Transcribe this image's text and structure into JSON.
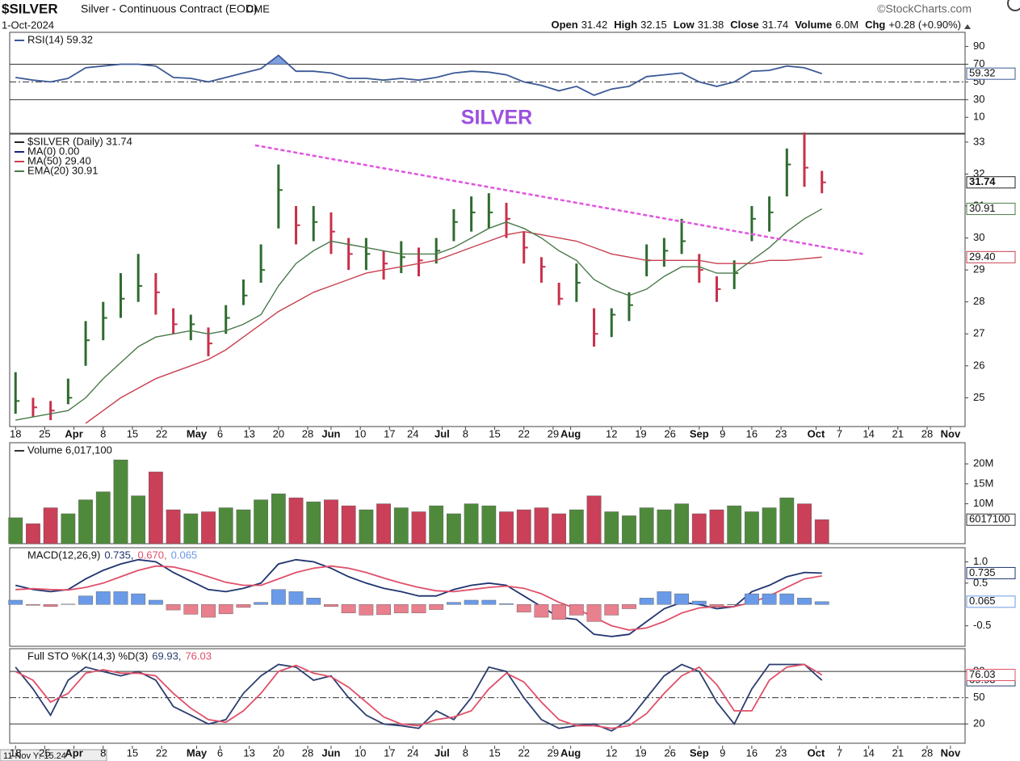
{
  "header": {
    "symbol": "$SILVER",
    "description": "Silver - Continuous Contract (EOD)",
    "exchange": "CME",
    "source": "©StockCharts.com",
    "date": "1-Oct-2024",
    "quote": [
      {
        "label": "Open",
        "value": 31.42
      },
      {
        "label": "High",
        "value": 32.15
      },
      {
        "label": "Low",
        "value": 31.38
      },
      {
        "label": "Close",
        "value": 31.74
      },
      {
        "label": "Volume",
        "value": "6.0M"
      },
      {
        "label": "Chg",
        "value": "+0.28 (+0.90%)"
      }
    ],
    "cursor": "11 Nov Y:-15.24"
  },
  "chart_data": {
    "type": "financial",
    "title": "SILVER",
    "x": [
      0,
      3,
      6,
      9,
      12,
      15,
      18,
      21,
      24,
      27,
      30,
      33,
      36,
      39,
      42,
      45,
      48,
      51,
      54,
      57,
      60,
      63,
      66,
      69,
      72,
      75,
      78,
      81,
      84,
      87,
      90,
      93,
      96,
      99,
      102,
      105,
      108,
      111,
      114,
      117,
      120,
      123,
      126,
      129,
      132,
      135,
      138
    ],
    "xlim": [
      -1,
      162.5
    ],
    "xticks": [
      {
        "value": 0,
        "label": "18"
      },
      {
        "value": 5,
        "label": "25"
      },
      {
        "value": 10,
        "label": "Apr"
      },
      {
        "value": 15,
        "label": "8"
      },
      {
        "value": 20,
        "label": "15"
      },
      {
        "value": 25,
        "label": "22"
      },
      {
        "value": 31,
        "label": "May"
      },
      {
        "value": 35,
        "label": "6"
      },
      {
        "value": 40,
        "label": "13"
      },
      {
        "value": 45,
        "label": "20"
      },
      {
        "value": 50,
        "label": "28"
      },
      {
        "value": 54,
        "label": "Jun"
      },
      {
        "value": 59,
        "label": "10"
      },
      {
        "value": 64,
        "label": "17"
      },
      {
        "value": 68,
        "label": "24"
      },
      {
        "value": 73,
        "label": "Jul"
      },
      {
        "value": 77,
        "label": "8"
      },
      {
        "value": 82,
        "label": "15"
      },
      {
        "value": 87,
        "label": "22"
      },
      {
        "value": 92,
        "label": "29"
      },
      {
        "value": 95,
        "label": "Aug"
      },
      {
        "value": 102,
        "label": "12"
      },
      {
        "value": 107,
        "label": "19"
      },
      {
        "value": 112,
        "label": "26"
      },
      {
        "value": 117,
        "label": "Sep"
      },
      {
        "value": 121,
        "label": "9"
      },
      {
        "value": 126,
        "label": "16"
      },
      {
        "value": 131,
        "label": "23"
      },
      {
        "value": 137,
        "label": "Oct"
      },
      {
        "value": 141,
        "label": "7"
      },
      {
        "value": 146,
        "label": "14"
      },
      {
        "value": 151,
        "label": "21"
      },
      {
        "value": 156,
        "label": "28"
      },
      {
        "value": 160,
        "label": "Nov"
      }
    ],
    "panels": [
      {
        "type": "line",
        "ylim": [
          -8,
          106
        ],
        "yticks": [
          10,
          30,
          50,
          70,
          90
        ],
        "reference_lines": [
          {
            "value": 70,
            "style": "solid"
          },
          {
            "value": 30,
            "style": "solid"
          },
          {
            "value": 50,
            "style": "dashdot"
          }
        ],
        "series": [
          {
            "name": "RSI(14) 59.32",
            "type": "line",
            "color": "#3c5a96",
            "fill_color": "#7f9ee0",
            "tag": "59.32",
            "values": [
              55,
              52,
              50,
              54,
              66,
              68,
              70,
              70,
              68,
              55,
              54,
              50,
              55,
              60,
              65,
              80,
              62,
              62,
              60,
              54,
              54,
              52,
              54,
              52,
              55,
              60,
              62,
              61,
              58,
              50,
              46,
              40,
              45,
              35,
              42,
              45,
              56,
              58,
              60,
              50,
              45,
              50,
              62,
              63,
              68,
              66,
              59.32
            ]
          }
        ]
      },
      {
        "type": "ohlc",
        "ylim": [
          24.1,
          33.25
        ],
        "yticks": [
          25,
          26,
          27,
          28,
          29,
          30,
          31,
          32,
          33
        ],
        "trendline": {
          "x": [
            41,
            145
          ],
          "values": [
            32.9,
            29.5
          ],
          "color": "#e055e0"
        },
        "series": [
          {
            "name": "$SILVER (Daily) 31.74",
            "type": "ohlc",
            "up_color": "#2f6b2f",
            "down_color": "#c8304a",
            "color": "#222222",
            "tag": "31.74",
            "high": [
              25.8,
              25.0,
              24.9,
              25.6,
              27.4,
              28.0,
              28.9,
              29.5,
              28.9,
              27.8,
              27.6,
              27.2,
              27.9,
              28.7,
              29.8,
              32.3,
              31.0,
              31.0,
              30.8,
              30.0,
              30.0,
              29.6,
              29.9,
              29.7,
              30.0,
              30.9,
              31.3,
              31.4,
              31.1,
              30.2,
              29.4,
              28.6,
              29.2,
              27.8,
              27.8,
              28.3,
              29.8,
              30.0,
              30.6,
              29.5,
              28.8,
              29.3,
              31.0,
              31.3,
              32.8,
              33.3,
              32.1
            ],
            "low": [
              24.5,
              24.4,
              24.3,
              24.8,
              26.0,
              26.8,
              27.5,
              28.0,
              27.6,
              27.0,
              26.8,
              26.3,
              27.0,
              27.9,
              28.6,
              30.3,
              29.8,
              29.9,
              29.5,
              29.0,
              29.0,
              28.7,
              28.9,
              28.8,
              29.2,
              29.9,
              30.2,
              30.3,
              30.0,
              29.2,
              28.6,
              27.9,
              28.0,
              26.6,
              26.9,
              27.4,
              28.8,
              29.1,
              29.5,
              28.6,
              28.0,
              28.4,
              29.9,
              30.2,
              31.3,
              31.6,
              31.4
            ],
            "close": [
              24.9,
              24.7,
              24.6,
              25.0,
              26.8,
              27.5,
              28.1,
              28.5,
              28.3,
              27.3,
              27.3,
              26.7,
              27.5,
              28.2,
              29.0,
              31.5,
              30.4,
              30.5,
              30.2,
              29.5,
              29.5,
              29.2,
              29.4,
              29.3,
              29.6,
              30.5,
              30.8,
              30.8,
              30.6,
              29.7,
              29.1,
              28.1,
              28.6,
              27.0,
              27.6,
              27.9,
              29.3,
              29.6,
              29.9,
              29.0,
              28.4,
              28.9,
              30.6,
              30.8,
              32.3,
              32.2,
              31.74
            ]
          },
          {
            "name": "MA(0) 0.00",
            "type": "legend",
            "color": "#1a237e"
          },
          {
            "name": "MA(50) 29.40",
            "type": "line",
            "color": "#c84050",
            "tag": "29.40",
            "values": [
              null,
              null,
              null,
              null,
              24.2,
              24.6,
              25.0,
              25.3,
              25.6,
              25.8,
              26.0,
              26.2,
              26.5,
              26.9,
              27.3,
              27.7,
              28.0,
              28.3,
              28.5,
              28.7,
              28.9,
              29.0,
              29.1,
              29.2,
              29.3,
              29.5,
              29.7,
              29.9,
              30.1,
              30.2,
              30.1,
              30.0,
              29.9,
              29.7,
              29.5,
              29.4,
              29.3,
              29.3,
              29.3,
              29.3,
              29.2,
              29.2,
              29.2,
              29.3,
              29.3,
              29.35,
              29.4
            ]
          },
          {
            "name": "EMA(20) 30.91",
            "type": "line",
            "color": "#4a7a4a",
            "tag": "30.91",
            "values": [
              24.3,
              24.4,
              24.5,
              24.6,
              25.0,
              25.6,
              26.1,
              26.6,
              26.9,
              27.0,
              27.1,
              27.0,
              27.1,
              27.3,
              27.6,
              28.5,
              29.2,
              29.6,
              29.9,
              29.8,
              29.7,
              29.6,
              29.5,
              29.5,
              29.5,
              29.7,
              30.0,
              30.3,
              30.5,
              30.3,
              30.0,
              29.6,
              29.3,
              28.7,
              28.4,
              28.2,
              28.4,
              28.8,
              29.1,
              29.1,
              28.9,
              28.9,
              29.3,
              29.7,
              30.2,
              30.6,
              30.91
            ]
          }
        ]
      },
      {
        "type": "bar",
        "ylim": [
          0,
          25300000
        ],
        "yticks": [
          {
            "value": 10000000,
            "label": "10M"
          },
          {
            "value": 15000000,
            "label": "15M"
          },
          {
            "value": 20000000,
            "label": "20M"
          }
        ],
        "series": [
          {
            "name": "Volume 6,017,100",
            "type": "bar",
            "up_color": "#4f8a3c",
            "down_color": "#c94058",
            "color": "#333333",
            "tag": "6017100",
            "values": [
              6500000,
              5000000,
              9000000,
              7500000,
              11000000,
              13000000,
              21000000,
              12000000,
              18000000,
              8500000,
              7500000,
              8000000,
              9000000,
              8500000,
              11000000,
              12500000,
              11500000,
              10500000,
              11000000,
              9500000,
              8500000,
              10000000,
              9000000,
              8000000,
              9500000,
              7500000,
              10000000,
              9500000,
              8000000,
              8500000,
              9000000,
              7500000,
              8500000,
              12000000,
              8000000,
              7000000,
              9000000,
              8500000,
              10000000,
              7500000,
              8500000,
              9500000,
              8000000,
              9000000,
              11500000,
              10000000,
              6017100
            ]
          }
        ]
      },
      {
        "type": "macd",
        "legend": "MACD(12,26,9)",
        "ylim": [
          -0.98,
          1.33
        ],
        "yticks": [
          {
            "value": 1,
            "label": "1.0"
          },
          0.5,
          -0.5
        ],
        "series": [
          {
            "name": "0.735,",
            "type": "line",
            "color": "#1f3470",
            "tag": "0.735",
            "values": [
              0.45,
              0.35,
              0.3,
              0.35,
              0.6,
              0.8,
              0.95,
              1.05,
              1.0,
              0.75,
              0.55,
              0.35,
              0.3,
              0.38,
              0.5,
              0.95,
              1.05,
              1.0,
              0.85,
              0.65,
              0.5,
              0.38,
              0.3,
              0.2,
              0.2,
              0.35,
              0.45,
              0.5,
              0.45,
              0.2,
              -0.05,
              -0.3,
              -0.35,
              -0.7,
              -0.75,
              -0.7,
              -0.4,
              -0.1,
              0.05,
              0.0,
              -0.1,
              -0.05,
              0.3,
              0.45,
              0.65,
              0.75,
              0.735
            ]
          },
          {
            "name": "0.670,",
            "type": "line",
            "color": "#e0506a",
            "values": [
              0.35,
              0.37,
              0.35,
              0.34,
              0.4,
              0.5,
              0.65,
              0.8,
              0.9,
              0.88,
              0.78,
              0.65,
              0.52,
              0.45,
              0.45,
              0.6,
              0.75,
              0.85,
              0.9,
              0.85,
              0.75,
              0.62,
              0.5,
              0.4,
              0.32,
              0.3,
              0.35,
              0.4,
              0.43,
              0.38,
              0.25,
              0.05,
              -0.1,
              -0.3,
              -0.5,
              -0.6,
              -0.55,
              -0.4,
              -0.2,
              -0.08,
              -0.05,
              -0.05,
              0.05,
              0.2,
              0.4,
              0.6,
              0.67
            ]
          },
          {
            "name": "0.065",
            "type": "histogram",
            "color": "#6a9ae8",
            "neg_color": "#e8808e",
            "tag": "0.065",
            "values": [
              0.1,
              -0.02,
              -0.05,
              0.01,
              0.2,
              0.3,
              0.3,
              0.25,
              0.1,
              -0.13,
              -0.23,
              -0.3,
              -0.22,
              -0.07,
              0.05,
              0.35,
              0.3,
              0.15,
              -0.05,
              -0.2,
              -0.25,
              -0.24,
              -0.2,
              -0.2,
              -0.12,
              0.05,
              0.1,
              0.1,
              0.02,
              -0.18,
              -0.3,
              -0.35,
              -0.25,
              -0.4,
              -0.25,
              -0.1,
              0.15,
              0.3,
              0.25,
              0.08,
              -0.05,
              0.0,
              0.25,
              0.25,
              0.25,
              0.15,
              0.065
            ]
          }
        ]
      },
      {
        "type": "line",
        "legend": "Full STO %K(14,3) %D(3)",
        "ylim": [
          -2,
          106
        ],
        "yticks": [
          20,
          50,
          80
        ],
        "reference_lines": [
          {
            "value": 80,
            "style": "solid"
          },
          {
            "value": 20,
            "style": "solid"
          },
          {
            "value": 50,
            "style": "dashdot"
          }
        ],
        "series": [
          {
            "name": "69.93,",
            "type": "line",
            "color": "#2c3e70",
            "tag": "69.93",
            "values": [
              85,
              60,
              30,
              70,
              85,
              80,
              75,
              80,
              70,
              40,
              30,
              20,
              25,
              55,
              75,
              88,
              85,
              70,
              75,
              50,
              30,
              20,
              18,
              15,
              35,
              25,
              50,
              85,
              80,
              50,
              25,
              15,
              18,
              20,
              12,
              25,
              50,
              75,
              88,
              80,
              45,
              20,
              60,
              88,
              88,
              88,
              69.93
            ]
          },
          {
            "name": "76.03",
            "type": "line",
            "color": "#e0506a",
            "tag": "76.03",
            "values": [
              80,
              70,
              45,
              55,
              78,
              82,
              78,
              78,
              75,
              55,
              38,
              25,
              22,
              35,
              55,
              80,
              87,
              78,
              74,
              62,
              45,
              28,
              20,
              18,
              25,
              28,
              35,
              60,
              78,
              68,
              45,
              25,
              18,
              18,
              15,
              18,
              32,
              55,
              75,
              85,
              65,
              35,
              35,
              70,
              85,
              88,
              76.03
            ]
          }
        ]
      }
    ]
  }
}
